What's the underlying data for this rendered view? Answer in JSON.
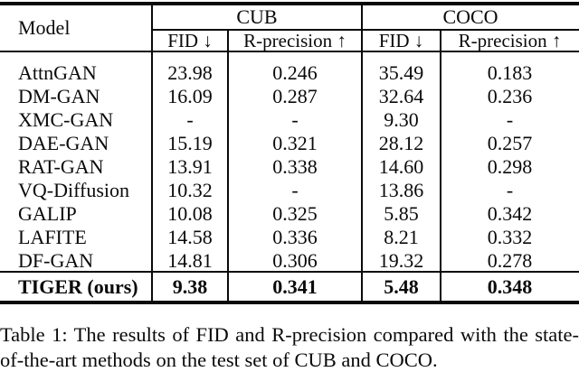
{
  "table": {
    "header": {
      "model_label": "Model",
      "group_cub": "CUB",
      "group_coco": "COCO",
      "cub_fid": "FID ↓",
      "cub_rprecision": "R-precision ↑",
      "coco_fid": "FID ↓",
      "coco_rprecision": "R-precision ↑"
    },
    "columns": [
      "Model",
      "CUB FID",
      "CUB R-precision",
      "COCO FID",
      "COCO R-precision"
    ],
    "rows": [
      {
        "model": "AttnGAN",
        "values": [
          "23.98",
          "0.246",
          "35.49",
          "0.183"
        ]
      },
      {
        "model": "DM-GAN",
        "values": [
          "16.09",
          "0.287",
          "32.64",
          "0.236"
        ]
      },
      {
        "model": "XMC-GAN",
        "values": [
          "-",
          "-",
          "9.30",
          "-"
        ]
      },
      {
        "model": "DAE-GAN",
        "values": [
          "15.19",
          "0.321",
          "28.12",
          "0.257"
        ]
      },
      {
        "model": "RAT-GAN",
        "values": [
          "13.91",
          "0.338",
          "14.60",
          "0.298"
        ]
      },
      {
        "model": "VQ-Diffusion",
        "values": [
          "10.32",
          "-",
          "13.86",
          "-"
        ]
      },
      {
        "model": "GALIP",
        "values": [
          "10.08",
          "0.325",
          "5.85",
          "0.342"
        ]
      },
      {
        "model": "LAFITE",
        "values": [
          "14.58",
          "0.336",
          "8.21",
          "0.332"
        ]
      },
      {
        "model": "DF-GAN",
        "values": [
          "14.81",
          "0.306",
          "19.32",
          "0.278"
        ]
      }
    ],
    "highlight": {
      "model": "TIGER (ours)",
      "values": [
        "9.38",
        "0.341",
        "5.48",
        "0.348"
      ]
    }
  },
  "caption": {
    "line1": "Table 1: The results of FID and R-precision compared with the state-",
    "line2": "of-the-art methods on the test set of CUB and COCO."
  },
  "colors": {
    "ink": "#0a0a0a",
    "background": "#ffffff"
  }
}
